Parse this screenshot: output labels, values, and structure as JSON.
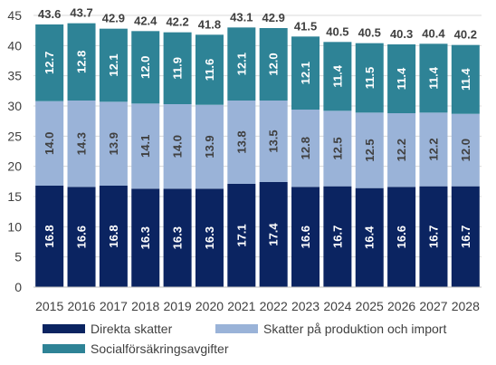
{
  "chart_data": {
    "type": "bar",
    "stacked": true,
    "categories": [
      "2015",
      "2016",
      "2017",
      "2018",
      "2019",
      "2020",
      "2021",
      "2022",
      "2023",
      "2024",
      "2025",
      "2026",
      "2027",
      "2028"
    ],
    "series": [
      {
        "name": "Direkta skatter",
        "color": "#0b2461",
        "label_color": "#ffffff",
        "values": [
          16.8,
          16.6,
          16.8,
          16.3,
          16.3,
          16.3,
          17.1,
          17.4,
          16.6,
          16.7,
          16.4,
          16.6,
          16.7,
          16.7
        ]
      },
      {
        "name": "Skatter på produktion och import",
        "color": "#9ab3d8",
        "label_color": "#404040",
        "values": [
          14.0,
          14.3,
          13.9,
          14.1,
          14.0,
          13.9,
          13.8,
          13.5,
          12.8,
          12.5,
          12.5,
          12.2,
          12.2,
          12.0
        ]
      },
      {
        "name": "Socialförsäkringsavgifter",
        "color": "#2e8396",
        "label_color": "#ffffff",
        "values": [
          12.7,
          12.8,
          12.1,
          12.0,
          11.9,
          11.6,
          12.1,
          12.0,
          12.1,
          11.4,
          11.5,
          11.4,
          11.4,
          11.4
        ]
      }
    ],
    "totals": [
      "43.6",
      "43.7",
      "42.9",
      "42.4",
      "42.2",
      "41.8",
      "43.1",
      "42.9",
      "41.5",
      "40.5",
      "40.5",
      "40.3",
      "40.4",
      "40.2"
    ],
    "segment_labels": [
      [
        "16.8",
        "16.6",
        "16.8",
        "16.3",
        "16.3",
        "16.3",
        "17.1",
        "17.4",
        "16.6",
        "16.7",
        "16.4",
        "16.6",
        "16.7",
        "16.7"
      ],
      [
        "14.0",
        "14.3",
        "13.9",
        "14.1",
        "14.0",
        "13.9",
        "13.8",
        "13.5",
        "12.8",
        "12.5",
        "12.5",
        "12.2",
        "12.2",
        "12.0"
      ],
      [
        "12.7",
        "12.8",
        "12.1",
        "12.0",
        "11.9",
        "11.6",
        "12.1",
        "12.0",
        "12.1",
        "11.4",
        "11.5",
        "11.4",
        "11.4",
        "11.4"
      ]
    ],
    "yticks": [
      "0",
      "5",
      "10",
      "15",
      "20",
      "25",
      "30",
      "35",
      "40",
      "45"
    ],
    "ylim": [
      0,
      45
    ],
    "grid": true,
    "legend_position": "bottom"
  }
}
